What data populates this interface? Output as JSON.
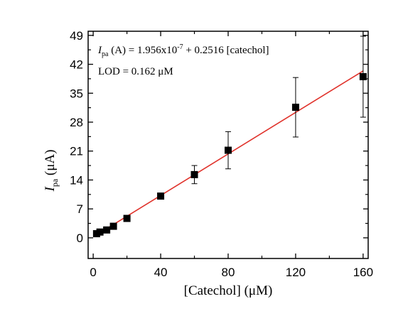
{
  "chart_data": {
    "type": "scatter",
    "xlabel": "[Catechol] (μM)",
    "ylabel_main": "I",
    "ylabel_sub": "pa",
    "ylabel_unit": " (μA)",
    "xlim": [
      -3,
      163
    ],
    "ylim": [
      -5,
      50
    ],
    "x_ticks": [
      0,
      40,
      80,
      120,
      160
    ],
    "y_ticks": [
      0,
      7,
      14,
      21,
      28,
      35,
      42,
      49
    ],
    "x_minor_ticks": [
      20,
      60,
      100,
      140
    ],
    "y_minor_ticks": [
      3.5,
      10.5,
      17.5,
      24.5,
      31.5,
      38.5,
      45.5
    ],
    "series": [
      {
        "marker": "square",
        "color": "#000000",
        "x": [
          2,
          4,
          8,
          12,
          20,
          40,
          60,
          80,
          120,
          160
        ],
        "y": [
          1.0,
          1.4,
          1.9,
          2.8,
          4.7,
          10.1,
          15.3,
          21.2,
          31.6,
          39.0
        ],
        "error": [
          0.3,
          0.3,
          0.4,
          0.4,
          0.5,
          0.6,
          2.2,
          4.5,
          7.2,
          9.8
        ]
      }
    ],
    "fit": {
      "color": "#e0322b",
      "x": [
        2,
        160
      ],
      "y": [
        0.7,
        40.4
      ]
    },
    "annotations": {
      "equation_italic": "I",
      "equation_sub": "pa",
      "equation_mid": " (A) = 1.956x10",
      "equation_sup": "-7",
      "equation_tail": " + 0.2516 [catechol]",
      "lod": "LOD = 0.162 μM"
    }
  }
}
